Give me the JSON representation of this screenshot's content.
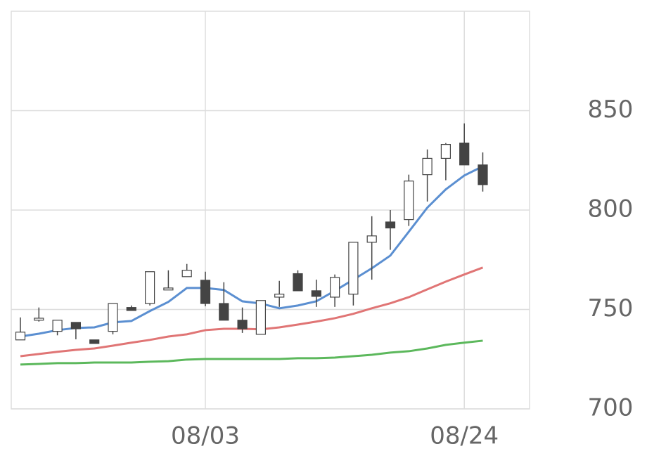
{
  "chart_data": {
    "type": "candlestick",
    "categories": [
      null,
      null,
      null,
      null,
      null,
      null,
      null,
      null,
      null,
      null,
      "08/03",
      null,
      null,
      null,
      null,
      null,
      null,
      null,
      null,
      null,
      null,
      null,
      null,
      null,
      "08/24",
      null
    ],
    "open": [
      734.7,
      744.6,
      739,
      743.5,
      734.7,
      739,
      751,
      753,
      759.8,
      766.5,
      764.7,
      753,
      744.6,
      737.5,
      756.2,
      768,
      759.4,
      756.2,
      757.7,
      783.8,
      794,
      795.2,
      817.8,
      826,
      833.7,
      822.7
    ],
    "high": [
      746,
      751,
      744.6,
      743.5,
      734.7,
      753,
      752,
      769,
      769.7,
      772.9,
      769,
      763.7,
      751,
      754.5,
      764.4,
      769.7,
      765,
      767.6,
      783.8,
      796.9,
      800,
      817.8,
      830.5,
      833.7,
      843.6,
      829
    ],
    "low": [
      734.7,
      743.9,
      737,
      735,
      732.9,
      737.5,
      749.5,
      752,
      759.8,
      766.5,
      751.6,
      744.6,
      738.2,
      737.5,
      751.3,
      759.4,
      751.3,
      751.3,
      752,
      765,
      780,
      792,
      804.3,
      815,
      822.7,
      809.3
    ],
    "close": [
      738.6,
      745.6,
      744.6,
      740.3,
      732.9,
      753,
      749.5,
      769,
      760.8,
      769.7,
      753,
      744.6,
      740.3,
      754.5,
      757.7,
      759.4,
      756.6,
      766.1,
      783.8,
      787,
      791,
      814.6,
      826,
      833,
      822.7,
      812.8
    ],
    "up_color": "#ffffff",
    "down_color": "#444444",
    "edge_color": "#444444",
    "lines": [
      {
        "color": "#5b8fd1",
        "values": [
          736.4,
          737.8,
          739.6,
          740.7,
          741,
          743.5,
          744.2,
          749.2,
          753.8,
          760.8,
          760.8,
          759.8,
          754.1,
          753,
          750.6,
          752,
          754.1,
          759.4,
          765,
          770.7,
          777.1,
          789.1,
          801.2,
          810.4,
          817.4,
          822
        ]
      },
      {
        "color": "#e07575",
        "values": [
          726.5,
          727.6,
          728.7,
          729.7,
          730.4,
          731.8,
          733.3,
          734.7,
          736.4,
          737.5,
          739.6,
          740.3,
          740.3,
          740,
          741,
          742.4,
          743.9,
          745.6,
          747.8,
          750.6,
          753.1,
          756.2,
          760.1,
          764,
          767.6,
          771.1
        ]
      },
      {
        "color": "#5cb85c",
        "values": [
          722.3,
          722.6,
          723,
          723,
          723.3,
          723.3,
          723.3,
          723.7,
          724,
          724.8,
          725.1,
          725.1,
          725.1,
          725.1,
          725.1,
          725.5,
          725.5,
          725.8,
          726.5,
          727.2,
          728.3,
          729,
          730.4,
          732.2,
          733.3,
          734.3
        ]
      }
    ],
    "ylim": [
      700,
      900
    ],
    "yticks": [
      700,
      750,
      800,
      850
    ],
    "grid": true
  }
}
